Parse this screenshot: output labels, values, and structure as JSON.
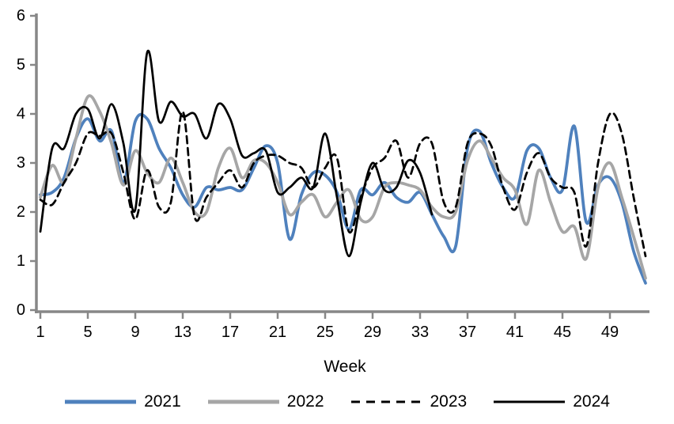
{
  "chart_data": {
    "type": "line",
    "title": "",
    "xlabel": "Week",
    "ylabel": "",
    "ylim": [
      0,
      6
    ],
    "xlim": [
      1,
      52
    ],
    "y_ticks": [
      0,
      1,
      2,
      3,
      4,
      5,
      6
    ],
    "x_ticks": [
      1,
      5,
      9,
      13,
      17,
      21,
      25,
      29,
      33,
      37,
      41,
      45,
      49
    ],
    "grid": false,
    "legend_position": "bottom",
    "axis_color": "#878787",
    "text_color": "#000000",
    "background_color": "#FFFFFF",
    "series": [
      {
        "name": "2021",
        "color": "#4F81BD",
        "style": "solid",
        "line_width": 3.75,
        "start_week": 1,
        "values": [
          2.35,
          2.4,
          2.7,
          3.5,
          3.9,
          3.45,
          3.65,
          2.6,
          3.85,
          3.9,
          3.3,
          2.9,
          2.35,
          2.1,
          2.5,
          2.45,
          2.5,
          2.45,
          2.9,
          3.35,
          3.0,
          1.45,
          2.35,
          2.8,
          2.75,
          2.4,
          1.65,
          2.45,
          2.35,
          2.6,
          2.3,
          2.2,
          2.4,
          1.95,
          1.5,
          1.3,
          3.3,
          3.65,
          3.0,
          2.5,
          2.3,
          3.25,
          3.3,
          2.7,
          2.45,
          3.75,
          1.8,
          2.55,
          2.7,
          2.2,
          1.2,
          0.55
        ]
      },
      {
        "name": "2022",
        "color": "#A6A6A6",
        "style": "solid",
        "line_width": 3.75,
        "start_week": 1,
        "values": [
          2.3,
          2.95,
          2.6,
          3.5,
          4.35,
          4.05,
          3.4,
          2.55,
          3.25,
          2.8,
          2.6,
          3.1,
          2.6,
          2.0,
          2.0,
          2.9,
          3.3,
          2.7,
          3.05,
          3.0,
          2.6,
          1.95,
          2.2,
          2.35,
          1.9,
          2.2,
          2.45,
          1.85,
          1.9,
          2.5,
          2.6,
          2.55,
          2.45,
          2.1,
          1.9,
          2.0,
          3.05,
          3.45,
          3.1,
          2.7,
          2.45,
          1.75,
          2.85,
          2.2,
          1.6,
          1.7,
          1.05,
          2.5,
          3.0,
          2.3,
          1.5,
          0.65
        ]
      },
      {
        "name": "2023",
        "color": "#000000",
        "style": "dashed",
        "line_width": 2.75,
        "start_week": 1,
        "values": [
          2.25,
          2.15,
          2.6,
          3.0,
          3.6,
          3.55,
          3.6,
          2.8,
          1.85,
          2.85,
          2.1,
          2.2,
          4.05,
          1.9,
          2.3,
          2.6,
          2.85,
          2.5,
          3.0,
          3.15,
          3.15,
          3.0,
          2.9,
          2.5,
          2.9,
          3.1,
          1.6,
          2.3,
          2.9,
          3.1,
          3.45,
          2.7,
          3.4,
          3.4,
          2.2,
          2.1,
          3.4,
          3.6,
          3.35,
          2.5,
          2.05,
          2.8,
          3.2,
          2.7,
          2.5,
          2.4,
          1.3,
          3.0,
          4.0,
          3.6,
          2.3,
          1.1
        ]
      },
      {
        "name": "2024",
        "color": "#000000",
        "style": "solid",
        "line_width": 2.75,
        "start_week": 1,
        "values": [
          1.6,
          3.3,
          3.3,
          4.0,
          4.1,
          3.5,
          4.2,
          3.4,
          2.05,
          5.25,
          3.85,
          4.25,
          3.95,
          4.0,
          3.5,
          4.2,
          3.9,
          3.15,
          3.2,
          3.25,
          2.4,
          2.5,
          2.7,
          2.5,
          3.6,
          2.3,
          1.1,
          2.2,
          3.0,
          2.45,
          2.5,
          3.05,
          2.8,
          1.95
        ]
      }
    ]
  }
}
